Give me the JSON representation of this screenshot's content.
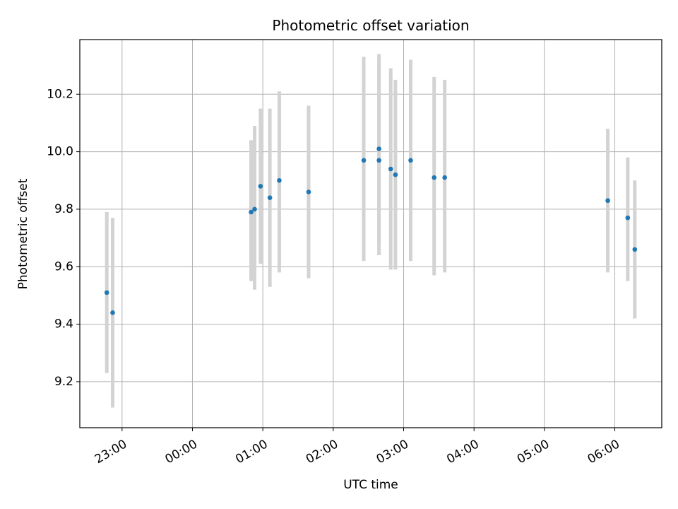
{
  "chart_data": {
    "type": "scatter",
    "title": "Photometric offset variation",
    "xlabel": "UTC time",
    "ylabel": "Photometric offset",
    "x_ticks": [
      "23:00",
      "00:00",
      "01:00",
      "02:00",
      "03:00",
      "04:00",
      "05:00",
      "06:00"
    ],
    "y_ticks": [
      "9.2",
      "9.4",
      "9.6",
      "9.8",
      "10.0",
      "10.2"
    ],
    "xlim": [
      "22:24",
      "06:40"
    ],
    "ylim": [
      9.04,
      10.39
    ],
    "grid": true,
    "colors": {
      "points": "#1f77b4",
      "errorbars": "#d3d3d3",
      "grid": "#b0b0b0"
    },
    "points": [
      {
        "x": "22:47",
        "y": 9.51,
        "ymin": 9.23,
        "ymax": 9.79
      },
      {
        "x": "22:52",
        "y": 9.44,
        "ymin": 9.11,
        "ymax": 9.77
      },
      {
        "x": "00:50",
        "y": 9.79,
        "ymin": 9.55,
        "ymax": 10.04
      },
      {
        "x": "00:53",
        "y": 9.8,
        "ymin": 9.52,
        "ymax": 10.09
      },
      {
        "x": "00:58",
        "y": 9.88,
        "ymin": 9.61,
        "ymax": 10.15
      },
      {
        "x": "01:06",
        "y": 9.84,
        "ymin": 9.53,
        "ymax": 10.15
      },
      {
        "x": "01:14",
        "y": 9.9,
        "ymin": 9.58,
        "ymax": 10.21
      },
      {
        "x": "01:39",
        "y": 9.86,
        "ymin": 9.56,
        "ymax": 10.16
      },
      {
        "x": "02:26",
        "y": 9.97,
        "ymin": 9.62,
        "ymax": 10.33
      },
      {
        "x": "02:39",
        "y": 9.97,
        "ymin": 9.64,
        "ymax": 10.3
      },
      {
        "x": "02:39",
        "y": 10.01,
        "ymin": 9.68,
        "ymax": 10.34
      },
      {
        "x": "02:49",
        "y": 9.94,
        "ymin": 9.59,
        "ymax": 10.29
      },
      {
        "x": "02:53",
        "y": 9.92,
        "ymin": 9.59,
        "ymax": 10.25
      },
      {
        "x": "03:06",
        "y": 9.97,
        "ymin": 9.62,
        "ymax": 10.32
      },
      {
        "x": "03:26",
        "y": 9.91,
        "ymin": 9.57,
        "ymax": 10.26
      },
      {
        "x": "03:35",
        "y": 9.91,
        "ymin": 9.58,
        "ymax": 10.25
      },
      {
        "x": "05:54",
        "y": 9.83,
        "ymin": 9.58,
        "ymax": 10.08
      },
      {
        "x": "06:11",
        "y": 9.77,
        "ymin": 9.55,
        "ymax": 9.98
      },
      {
        "x": "06:17",
        "y": 9.66,
        "ymin": 9.42,
        "ymax": 9.9
      }
    ]
  }
}
